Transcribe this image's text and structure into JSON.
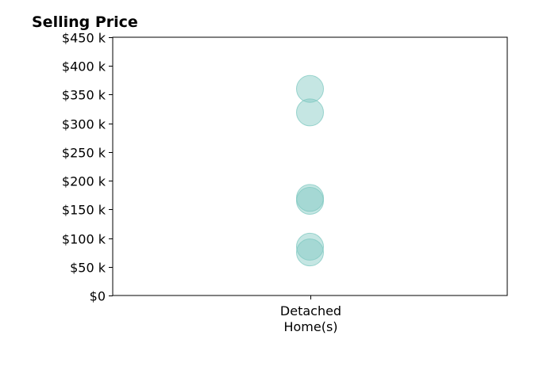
{
  "chart_data": {
    "type": "scatter",
    "title": "Selling Price",
    "xlabel": "",
    "ylabel": "",
    "categories": [
      {
        "line1": "Detached",
        "line2": "Home(s)"
      }
    ],
    "y_ticks": [
      {
        "value": 0,
        "label": "$0"
      },
      {
        "value": 50000,
        "label": "$50 k"
      },
      {
        "value": 100000,
        "label": "$100 k"
      },
      {
        "value": 150000,
        "label": "$150 k"
      },
      {
        "value": 200000,
        "label": "$200 k"
      },
      {
        "value": 250000,
        "label": "$250 k"
      },
      {
        "value": 300000,
        "label": "$300 k"
      },
      {
        "value": 350000,
        "label": "$350 k"
      },
      {
        "value": 400000,
        "label": "$400 k"
      },
      {
        "value": 450000,
        "label": "$450 k"
      }
    ],
    "ylim": [
      0,
      450000
    ],
    "series": [
      {
        "category": "Detached Home(s)",
        "values": [
          360000,
          319000,
          170000,
          165000,
          85000,
          75000
        ]
      }
    ],
    "marker_color": "#7ec8c0",
    "marker_opacity": 0.45,
    "grid": false,
    "legend": "none"
  }
}
